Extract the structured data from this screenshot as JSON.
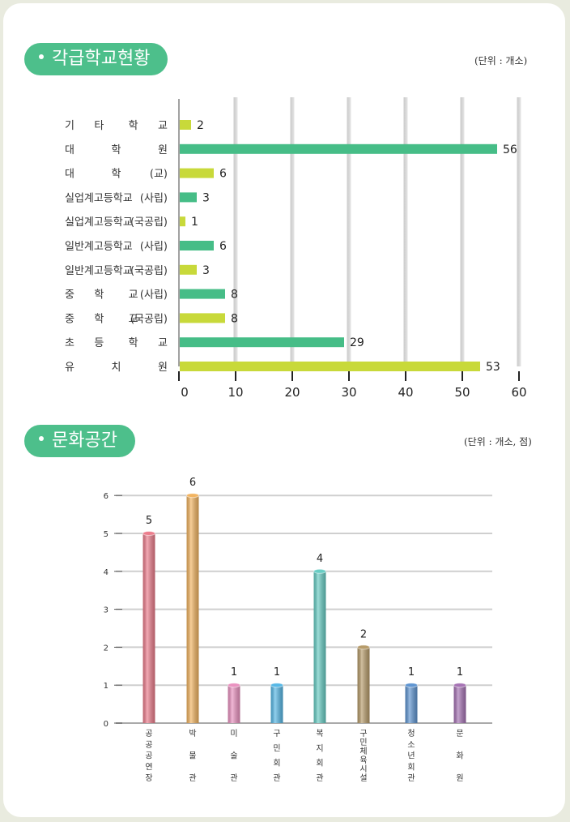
{
  "sections": {
    "schools": {
      "title": "각급학교현황",
      "unit": "(단위 : 개소)"
    },
    "culture": {
      "title": "문화공간",
      "unit": "(단위 : 개소, 점)"
    }
  },
  "colors": {
    "lime": "#c8d93a",
    "green": "#46bd87",
    "grid": "#d9d9d9",
    "pill": "#4dbf8b"
  },
  "chart_data": [
    {
      "type": "bar",
      "orientation": "horizontal",
      "title": "각급학교현황",
      "unit": "(단위 : 개소)",
      "categories": [
        [
          "기",
          "타",
          "학",
          "교"
        ],
        [
          "대",
          "학",
          "원"
        ],
        [
          "대",
          "학",
          "(교)"
        ],
        [
          "실업계고등학교",
          "(사립)"
        ],
        [
          "실업계고등학교",
          "(국공립)"
        ],
        [
          "일반계고등학교",
          "(사립)"
        ],
        [
          "일반계고등학교",
          "(국공립)"
        ],
        [
          "중",
          "학",
          "교",
          "(사립)"
        ],
        [
          "중",
          "학",
          "교",
          "(국공립)"
        ],
        [
          "초",
          "등",
          "학",
          "교"
        ],
        [
          "유",
          "치",
          "원"
        ]
      ],
      "values": [
        2,
        56,
        6,
        3,
        1,
        6,
        3,
        8,
        8,
        29,
        53
      ],
      "bar_colors": [
        "lime",
        "green",
        "lime",
        "green",
        "lime",
        "green",
        "lime",
        "green",
        "lime",
        "green",
        "lime"
      ],
      "xlim": [
        0,
        60
      ],
      "xticks": [
        0,
        10,
        20,
        30,
        40,
        50,
        60
      ],
      "grid": true
    },
    {
      "type": "bar",
      "title": "문화공간",
      "unit": "(단위 : 개소, 점)",
      "categories": [
        [
          "공",
          "공",
          "공",
          "연",
          "장"
        ],
        [
          "박",
          "물",
          "관"
        ],
        [
          "미",
          "술",
          "관"
        ],
        [
          "구",
          "민",
          "회",
          "관"
        ],
        [
          "복",
          "지",
          "회",
          "관"
        ],
        [
          "구",
          "민",
          "체",
          "육",
          "시",
          "설"
        ],
        [
          "청",
          "소",
          "년",
          "회",
          "관"
        ],
        [
          "문",
          "화",
          "원"
        ]
      ],
      "values": [
        5,
        6,
        1,
        1,
        4,
        2,
        1,
        1
      ],
      "bar_colors": [
        "#ec7d8c",
        "#f2b461",
        "#ea92c0",
        "#57b8e6",
        "#68cdc4",
        "#b79c6b",
        "#5f95d1",
        "#a673b4"
      ],
      "ylim": [
        0,
        6
      ],
      "yticks": [
        0,
        1,
        2,
        3,
        4,
        5,
        6
      ],
      "grid": true
    }
  ]
}
